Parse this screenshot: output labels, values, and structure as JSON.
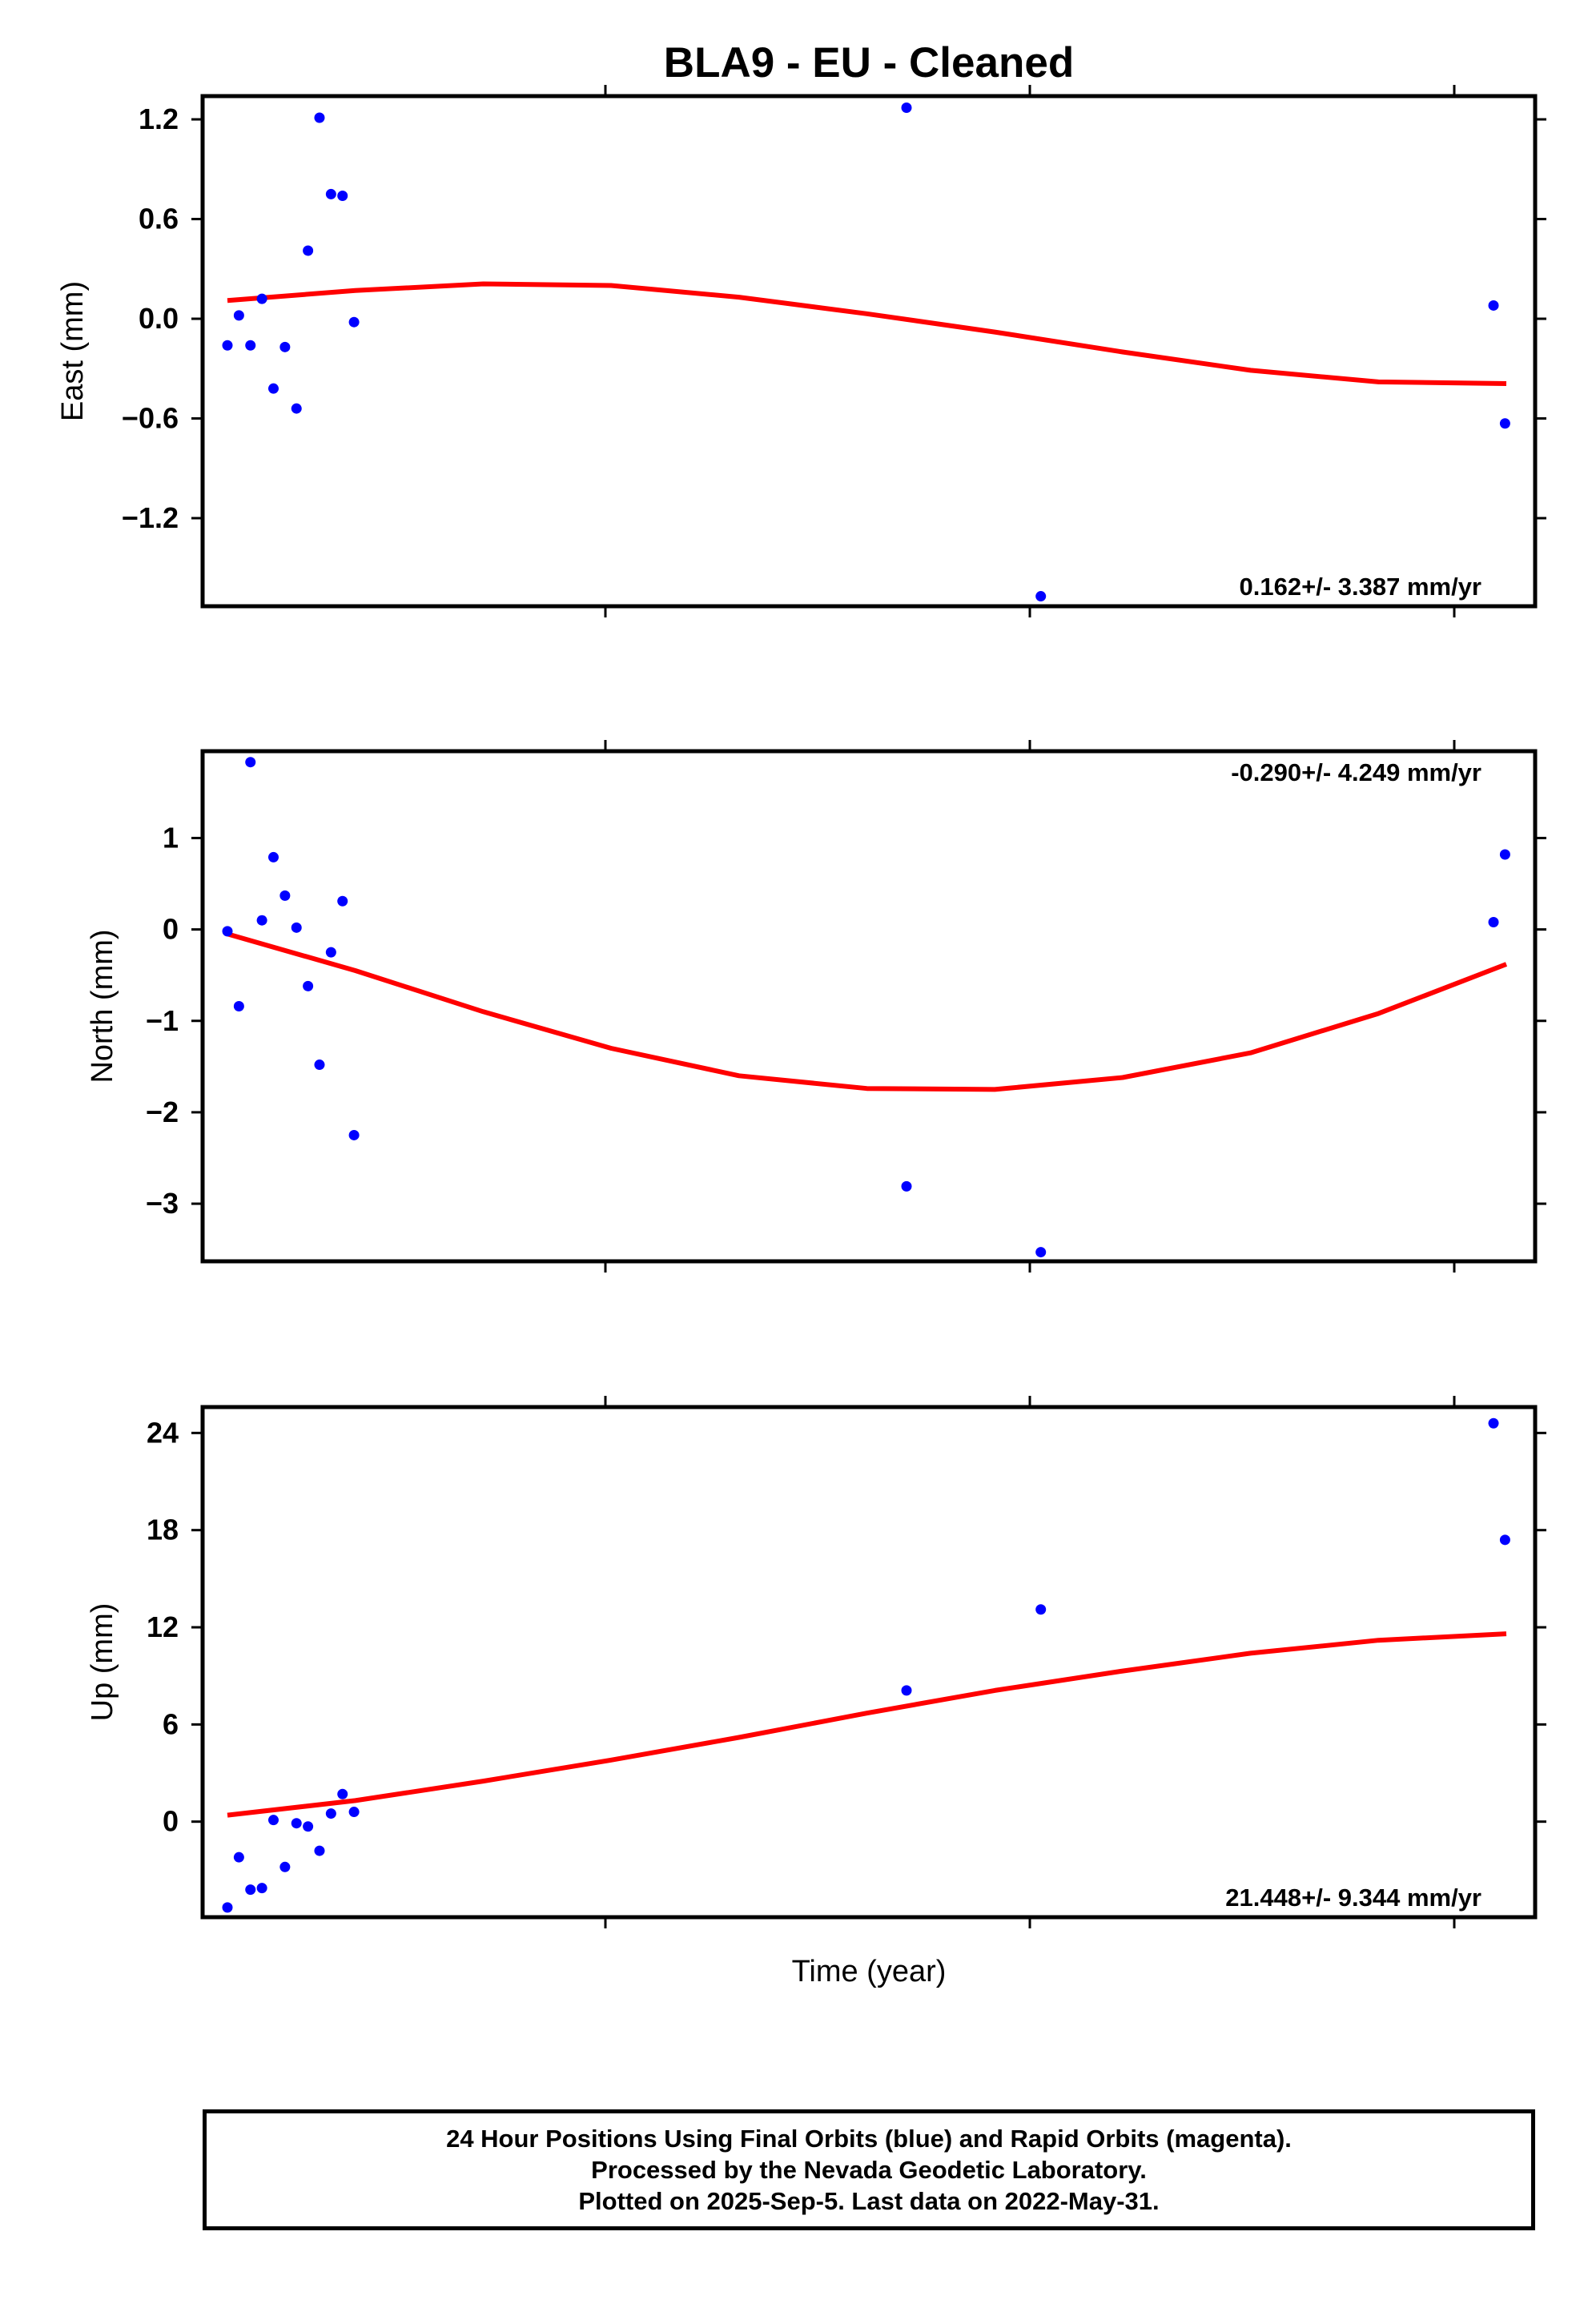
{
  "title": "BLA9  - EU - Cleaned",
  "xlabel": "Time (year)",
  "footer": {
    "line1": "24 Hour Positions Using Final Orbits (blue) and Rapid Orbits (magenta).",
    "line2": "Processed by the Nevada Geodetic Laboratory.",
    "line3": "Plotted on 2025-Sep-5. Last data on 2022-May-31."
  },
  "colors": {
    "points": "#0000ff",
    "fit": "#ff0000",
    "frame": "#000000"
  },
  "chart_data": [
    {
      "type": "scatter",
      "ylabel": "East (mm)",
      "rate_label": "0.162+/- 3.387 mm/yr",
      "rate_position": "bottom-right",
      "ylim": [
        -1.73,
        1.34
      ],
      "yticks": [
        1.2,
        0.6,
        0.0,
        -0.6,
        -1.2
      ],
      "ytick_labels": [
        "1.2",
        "0.6",
        "0.0",
        "−0.6",
        "−1.2"
      ],
      "x": [
        0.0,
        0.009,
        0.018,
        0.027,
        0.036,
        0.045,
        0.054,
        0.063,
        0.072,
        0.081,
        0.09,
        0.099,
        0.531,
        0.636,
        0.99,
        0.999
      ],
      "y": [
        -0.16,
        0.02,
        -0.16,
        0.12,
        -0.42,
        -0.17,
        -0.54,
        0.41,
        1.21,
        0.75,
        0.74,
        -0.02,
        1.27,
        -1.67,
        0.08,
        -0.63
      ],
      "fit": {
        "x": [
          0.0,
          0.1,
          0.2,
          0.3,
          0.4,
          0.5,
          0.6,
          0.7,
          0.8,
          0.9,
          1.0
        ],
        "y": [
          0.11,
          0.17,
          0.21,
          0.2,
          0.13,
          0.03,
          -0.08,
          -0.2,
          -0.31,
          -0.38,
          -0.39
        ]
      }
    },
    {
      "type": "scatter",
      "ylabel": "North (mm)",
      "rate_label": "-0.290+/- 4.249 mm/yr",
      "rate_position": "top-right",
      "ylim": [
        -3.63,
        1.95
      ],
      "yticks": [
        1,
        0,
        -1,
        -2,
        -3
      ],
      "ytick_labels": [
        "1",
        "0",
        "−1",
        "−2",
        "−3"
      ],
      "x": [
        0.0,
        0.009,
        0.018,
        0.027,
        0.036,
        0.045,
        0.054,
        0.063,
        0.072,
        0.081,
        0.09,
        0.099,
        0.531,
        0.636,
        0.99,
        0.999
      ],
      "y": [
        -0.02,
        -0.84,
        1.83,
        0.1,
        0.79,
        0.37,
        0.02,
        -0.62,
        -1.48,
        -0.25,
        0.31,
        -2.25,
        -2.81,
        -3.53,
        0.08,
        0.82
      ],
      "fit": {
        "x": [
          0.0,
          0.1,
          0.2,
          0.3,
          0.4,
          0.5,
          0.6,
          0.7,
          0.8,
          0.9,
          1.0
        ],
        "y": [
          -0.05,
          -0.45,
          -0.9,
          -1.3,
          -1.6,
          -1.74,
          -1.75,
          -1.62,
          -1.35,
          -0.92,
          -0.38
        ]
      }
    },
    {
      "type": "scatter",
      "ylabel": "Up (mm)",
      "rate_label": "21.448+/- 9.344 mm/yr",
      "rate_position": "bottom-right",
      "ylim": [
        -5.9,
        25.6
      ],
      "yticks": [
        24,
        18,
        12,
        6,
        0
      ],
      "ytick_labels": [
        "24",
        "18",
        "12",
        "6",
        "0"
      ],
      "x": [
        0.0,
        0.009,
        0.018,
        0.027,
        0.036,
        0.045,
        0.054,
        0.063,
        0.072,
        0.081,
        0.09,
        0.099,
        0.531,
        0.636,
        0.99,
        0.999
      ],
      "y": [
        -5.3,
        -2.2,
        -4.2,
        -4.1,
        0.1,
        -2.8,
        -0.1,
        -0.3,
        -1.8,
        0.5,
        1.7,
        0.6,
        8.1,
        13.1,
        24.6,
        17.4
      ],
      "fit": {
        "x": [
          0.0,
          0.1,
          0.2,
          0.3,
          0.4,
          0.5,
          0.6,
          0.7,
          0.8,
          0.9,
          1.0
        ],
        "y": [
          0.4,
          1.3,
          2.5,
          3.8,
          5.2,
          6.7,
          8.1,
          9.3,
          10.4,
          11.2,
          11.6
        ]
      }
    }
  ]
}
